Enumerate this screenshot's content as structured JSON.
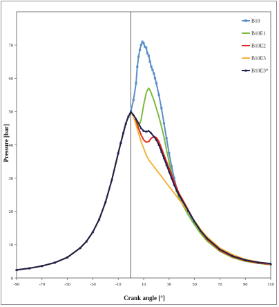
{
  "chart_data": {
    "type": "line",
    "xlabel": "Crank angle [°]",
    "ylabel": "Pressure [bar]",
    "xlim": [
      -90,
      110
    ],
    "ylim": [
      0,
      80
    ],
    "x_ticks": [
      "-90",
      "-70",
      "-50",
      "-30",
      "-10",
      "10",
      "30",
      "50",
      "70",
      "90",
      "110"
    ],
    "y_ticks": [
      "0",
      "10",
      "20",
      "30",
      "40",
      "50",
      "60",
      "70"
    ],
    "grid": false,
    "legend_position": "top-right",
    "vertical_marker_x": 0,
    "series": [
      {
        "name": "B10",
        "color": "#5b8fc9",
        "marker": "square",
        "x": [
          -90,
          -80,
          -70,
          -60,
          -50,
          -40,
          -35,
          -30,
          -25,
          -20,
          -15,
          -10,
          -8,
          -6,
          -4,
          -2,
          0,
          2,
          4,
          5,
          6,
          7,
          8,
          9,
          10,
          11,
          12,
          13,
          14,
          15,
          16,
          17,
          18,
          19,
          20,
          22,
          24,
          26,
          28,
          30,
          32,
          34,
          36,
          38,
          40,
          45,
          50,
          55,
          60,
          70,
          80,
          90,
          100,
          110
        ],
        "y": [
          2.4,
          2.9,
          3.6,
          4.6,
          6.2,
          9.0,
          11.0,
          13.8,
          17.6,
          22.8,
          29.5,
          37.5,
          40.6,
          43.6,
          46.4,
          48.5,
          50.2,
          53.5,
          58.5,
          63.5,
          66.5,
          68.5,
          70.0,
          71.0,
          70.5,
          69.5,
          69.2,
          67.5,
          66.8,
          65.0,
          63.5,
          62.5,
          61.5,
          60.0,
          58.5,
          55.0,
          51.0,
          46.5,
          42.0,
          37.5,
          33.5,
          30.0,
          27.0,
          25.0,
          23.5,
          20.0,
          16.5,
          13.7,
          11.5,
          8.3,
          6.4,
          5.2,
          4.5,
          4.0
        ]
      },
      {
        "name": "B10E1",
        "color": "#7cba3e",
        "marker": "line",
        "x": [
          -90,
          -80,
          -70,
          -60,
          -50,
          -40,
          -35,
          -30,
          -25,
          -20,
          -15,
          -10,
          -8,
          -6,
          -4,
          -2,
          0,
          2,
          4,
          6,
          8,
          10,
          12,
          13,
          14,
          15,
          16,
          17,
          18,
          20,
          22,
          24,
          26,
          28,
          30,
          32,
          34,
          36,
          38,
          40,
          45,
          50,
          55,
          60,
          70,
          80,
          90,
          100,
          110
        ],
        "y": [
          2.4,
          2.9,
          3.6,
          4.6,
          6.2,
          9.0,
          11.0,
          13.8,
          17.6,
          22.8,
          29.5,
          37.5,
          40.6,
          43.6,
          46.4,
          48.5,
          49.9,
          48.8,
          47.0,
          45.5,
          47.5,
          52.0,
          55.5,
          56.5,
          57.0,
          56.5,
          55.5,
          54.5,
          53.5,
          51.0,
          48.5,
          45.5,
          42.5,
          38.5,
          35.0,
          31.5,
          28.5,
          26.0,
          24.0,
          22.5,
          19.0,
          16.0,
          13.3,
          11.1,
          8.0,
          6.1,
          5.0,
          4.4,
          4.0
        ]
      },
      {
        "name": "B10E2",
        "color": "#e02a1c",
        "marker": "line",
        "x": [
          -90,
          -80,
          -70,
          -60,
          -50,
          -40,
          -35,
          -30,
          -25,
          -20,
          -15,
          -10,
          -8,
          -6,
          -4,
          -2,
          0,
          2,
          4,
          6,
          8,
          10,
          12,
          14,
          16,
          18,
          20,
          22,
          24,
          26,
          28,
          30,
          32,
          34,
          36,
          38,
          40,
          45,
          50,
          55,
          60,
          70,
          80,
          90,
          100,
          110
        ],
        "y": [
          2.4,
          2.9,
          3.6,
          4.6,
          6.2,
          9.0,
          11.0,
          13.8,
          17.6,
          22.8,
          29.5,
          37.5,
          40.6,
          43.6,
          46.4,
          48.5,
          49.9,
          48.8,
          47.0,
          45.0,
          43.0,
          41.5,
          40.8,
          41.0,
          42.0,
          42.5,
          42.2,
          41.0,
          39.0,
          37.0,
          35.0,
          33.0,
          31.0,
          29.0,
          27.0,
          25.3,
          24.0,
          20.5,
          17.0,
          14.0,
          11.6,
          8.3,
          6.4,
          5.2,
          4.5,
          4.1
        ]
      },
      {
        "name": "B10E3",
        "color": "#f2b33d",
        "marker": "line",
        "x": [
          -90,
          -80,
          -70,
          -60,
          -50,
          -40,
          -35,
          -30,
          -25,
          -20,
          -15,
          -10,
          -8,
          -6,
          -4,
          -2,
          0,
          2,
          4,
          6,
          8,
          10,
          12,
          14,
          16,
          18,
          20,
          22,
          24,
          26,
          28,
          30,
          32,
          34,
          36,
          38,
          40,
          45,
          50,
          55,
          60,
          70,
          80,
          90,
          100,
          110
        ],
        "y": [
          2.4,
          2.9,
          3.6,
          4.6,
          6.2,
          9.0,
          11.0,
          13.8,
          17.6,
          22.8,
          29.5,
          37.5,
          40.6,
          43.6,
          46.4,
          48.5,
          49.9,
          48.5,
          46.0,
          43.5,
          41.0,
          39.0,
          37.0,
          35.5,
          34.5,
          33.5,
          32.5,
          31.5,
          30.5,
          29.5,
          28.5,
          27.5,
          26.5,
          25.5,
          24.5,
          23.5,
          22.5,
          20.0,
          17.2,
          14.5,
          12.3,
          9.0,
          7.0,
          5.6,
          4.8,
          4.2
        ]
      },
      {
        "name": "B10E3*",
        "color": "#1a1f4d",
        "marker": "triangle",
        "x": [
          -90,
          -80,
          -70,
          -60,
          -50,
          -40,
          -35,
          -30,
          -25,
          -20,
          -15,
          -10,
          -8,
          -6,
          -4,
          -2,
          0,
          2,
          4,
          6,
          8,
          10,
          12,
          14,
          16,
          18,
          20,
          22,
          24,
          26,
          28,
          30,
          32,
          34,
          36,
          38,
          40,
          45,
          50,
          55,
          60,
          70,
          80,
          90,
          100,
          110
        ],
        "y": [
          2.4,
          2.9,
          3.6,
          4.6,
          6.2,
          9.0,
          11.0,
          13.8,
          17.6,
          22.8,
          29.5,
          37.5,
          40.6,
          43.6,
          46.4,
          48.5,
          49.9,
          49.0,
          47.8,
          46.5,
          45.0,
          44.2,
          44.0,
          44.2,
          43.5,
          42.5,
          41.5,
          40.0,
          38.0,
          36.0,
          34.0,
          32.0,
          30.0,
          28.0,
          26.3,
          24.8,
          23.5,
          20.2,
          17.0,
          14.1,
          11.9,
          8.6,
          6.6,
          5.4,
          4.7,
          4.3
        ]
      }
    ]
  }
}
